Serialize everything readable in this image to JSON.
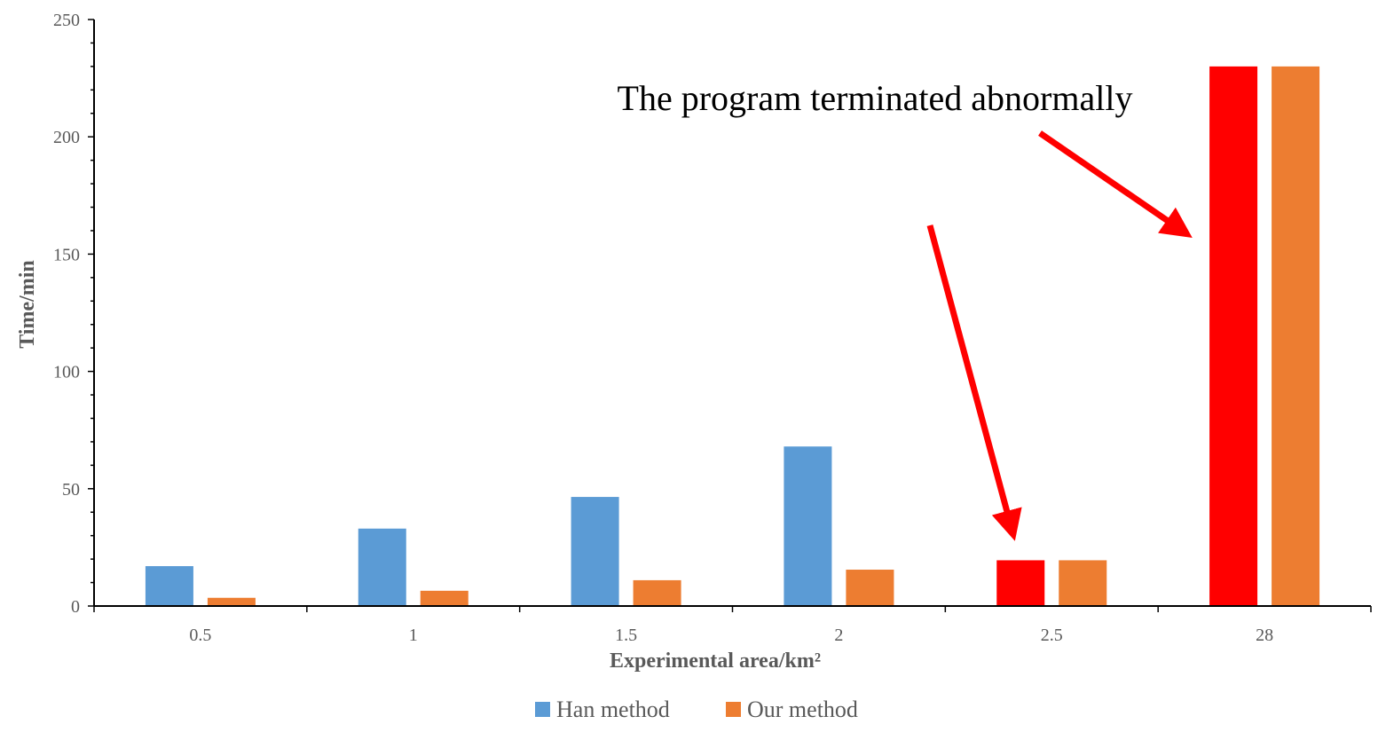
{
  "chart_data": {
    "type": "bar",
    "title": "",
    "xlabel": "Experimental area/km²",
    "ylabel": "Time/min",
    "ylim": [
      0,
      250
    ],
    "yticks": [
      0,
      50,
      100,
      150,
      200,
      250
    ],
    "categories": [
      "0.5",
      "1",
      "1.5",
      "2",
      "2.5",
      "28"
    ],
    "series": [
      {
        "name": "Han method",
        "color": "#5B9BD5",
        "values": [
          17,
          33,
          46.5,
          68,
          19.5,
          230
        ]
      },
      {
        "name": "Our method",
        "color": "#ED7D31",
        "values": [
          3.5,
          6.5,
          11,
          15.5,
          19.5,
          230
        ]
      }
    ],
    "highlight": {
      "series": "Han method",
      "categories": [
        "2.5",
        "28"
      ],
      "color": "#FF0000"
    },
    "annotation": {
      "text": "The program terminated abnormally",
      "arrow_color": "#FF0000"
    },
    "legend": {
      "position": "bottom"
    },
    "grid": false
  }
}
